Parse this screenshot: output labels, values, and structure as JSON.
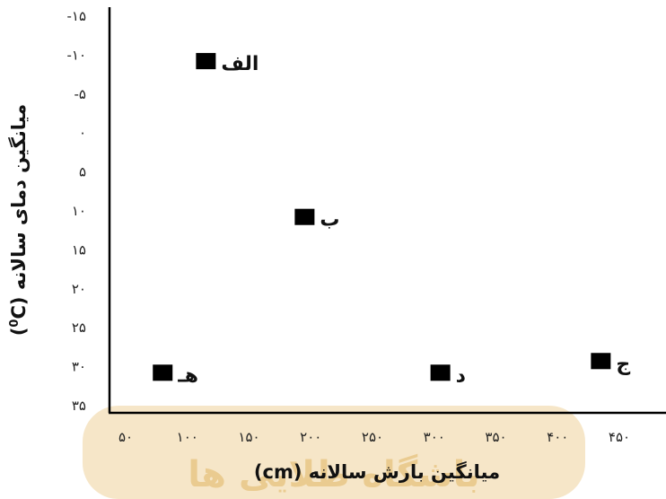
{
  "chart_data": {
    "type": "scatter",
    "title": "",
    "xlabel": "میانگین بارش سالانه (cm)",
    "ylabel": "میانگین دمای سالانه (°C)",
    "ylabel_parts": {
      "text": "میانگین دمای سالانه (",
      "sup": "0",
      "unit": "C)"
    },
    "xlim": [
      50,
      450
    ],
    "ylim": [
      -15,
      35
    ],
    "y_inverted": true,
    "x_ticks": [
      50,
      100,
      150,
      200,
      250,
      300,
      350,
      400,
      450
    ],
    "x_tick_labels": [
      "۵۰",
      "۱۰۰",
      "۱۵۰",
      "۲۰۰",
      "۲۵۰",
      "۳۰۰",
      "۳۵۰",
      "۴۰۰",
      "۴۵۰"
    ],
    "y_ticks": [
      -15,
      -10,
      -5,
      0,
      5,
      10,
      15,
      20,
      25,
      30,
      35
    ],
    "y_tick_labels": [
      "-۱۵",
      "-۱۰",
      "-۵",
      "۰",
      "۵",
      "۱۰",
      "۱۵",
      "۲۰",
      "۲۵",
      "۳۰",
      "۳۵"
    ],
    "points": [
      {
        "label": "الف",
        "x": 115,
        "y": -9
      },
      {
        "label": "ب",
        "x": 195,
        "y": 11
      },
      {
        "label": "هـ",
        "x": 80,
        "y": 31
      },
      {
        "label": "د",
        "x": 305,
        "y": 31
      },
      {
        "label": "ج",
        "x": 435,
        "y": 29.5
      }
    ],
    "marker_color": "#000000",
    "grid": false
  },
  "watermark": {
    "text": "باشگاه طلایی ها",
    "color": "#e9c98a"
  }
}
